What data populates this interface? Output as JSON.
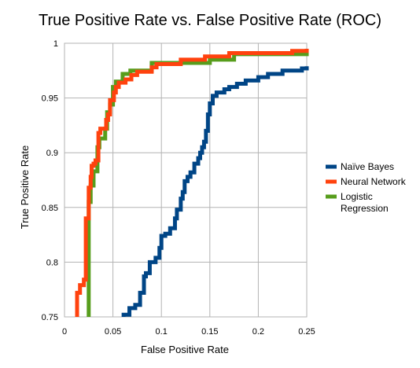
{
  "chart_data": {
    "type": "line",
    "title": "True Positive Rate vs. False Positive Rate (ROC)",
    "xlabel": "False Positive Rate",
    "ylabel": "True Positive Rate",
    "xlim": [
      0,
      0.25
    ],
    "ylim": [
      0.75,
      1
    ],
    "xticks": [
      "0",
      "0.05",
      "0.1",
      "0.15",
      "0.2",
      "0.25"
    ],
    "yticks": [
      "0.75",
      "0.8",
      "0.85",
      "0.9",
      "0.95",
      "1"
    ],
    "grid": "vertical-and-horizontal",
    "legend_position": "right",
    "series": [
      {
        "name": "Naïve Bayes",
        "color": "#004586",
        "points": [
          [
            0.061,
            0.75
          ],
          [
            0.061,
            0.752
          ],
          [
            0.067,
            0.752
          ],
          [
            0.067,
            0.758
          ],
          [
            0.073,
            0.758
          ],
          [
            0.073,
            0.761
          ],
          [
            0.078,
            0.761
          ],
          [
            0.078,
            0.772
          ],
          [
            0.082,
            0.772
          ],
          [
            0.082,
            0.787
          ],
          [
            0.084,
            0.787
          ],
          [
            0.084,
            0.79
          ],
          [
            0.088,
            0.79
          ],
          [
            0.088,
            0.8
          ],
          [
            0.094,
            0.8
          ],
          [
            0.094,
            0.804
          ],
          [
            0.098,
            0.804
          ],
          [
            0.098,
            0.813
          ],
          [
            0.1,
            0.813
          ],
          [
            0.1,
            0.824
          ],
          [
            0.104,
            0.824
          ],
          [
            0.104,
            0.826
          ],
          [
            0.109,
            0.826
          ],
          [
            0.109,
            0.831
          ],
          [
            0.114,
            0.831
          ],
          [
            0.114,
            0.84
          ],
          [
            0.116,
            0.84
          ],
          [
            0.116,
            0.848
          ],
          [
            0.12,
            0.848
          ],
          [
            0.12,
            0.858
          ],
          [
            0.122,
            0.858
          ],
          [
            0.122,
            0.864
          ],
          [
            0.124,
            0.864
          ],
          [
            0.124,
            0.874
          ],
          [
            0.127,
            0.874
          ],
          [
            0.127,
            0.878
          ],
          [
            0.13,
            0.878
          ],
          [
            0.13,
            0.882
          ],
          [
            0.134,
            0.882
          ],
          [
            0.134,
            0.89
          ],
          [
            0.138,
            0.89
          ],
          [
            0.138,
            0.895
          ],
          [
            0.14,
            0.895
          ],
          [
            0.14,
            0.9
          ],
          [
            0.142,
            0.9
          ],
          [
            0.142,
            0.905
          ],
          [
            0.144,
            0.905
          ],
          [
            0.144,
            0.91
          ],
          [
            0.146,
            0.91
          ],
          [
            0.146,
            0.92
          ],
          [
            0.148,
            0.92
          ],
          [
            0.148,
            0.935
          ],
          [
            0.15,
            0.935
          ],
          [
            0.15,
            0.945
          ],
          [
            0.153,
            0.945
          ],
          [
            0.153,
            0.952
          ],
          [
            0.157,
            0.952
          ],
          [
            0.157,
            0.955
          ],
          [
            0.165,
            0.955
          ],
          [
            0.165,
            0.958
          ],
          [
            0.17,
            0.958
          ],
          [
            0.17,
            0.96
          ],
          [
            0.178,
            0.96
          ],
          [
            0.178,
            0.963
          ],
          [
            0.187,
            0.963
          ],
          [
            0.187,
            0.966
          ],
          [
            0.2,
            0.966
          ],
          [
            0.2,
            0.969
          ],
          [
            0.21,
            0.969
          ],
          [
            0.21,
            0.972
          ],
          [
            0.225,
            0.972
          ],
          [
            0.225,
            0.975
          ],
          [
            0.245,
            0.975
          ],
          [
            0.245,
            0.977
          ],
          [
            0.25,
            0.977
          ],
          [
            0.25,
            0.979
          ]
        ]
      },
      {
        "name": "Neural Network",
        "color": "#ff420e",
        "points": [
          [
            0.013,
            0.75
          ],
          [
            0.013,
            0.772
          ],
          [
            0.016,
            0.772
          ],
          [
            0.016,
            0.779
          ],
          [
            0.02,
            0.779
          ],
          [
            0.02,
            0.784
          ],
          [
            0.022,
            0.784
          ],
          [
            0.022,
            0.84
          ],
          [
            0.025,
            0.84
          ],
          [
            0.025,
            0.868
          ],
          [
            0.027,
            0.868
          ],
          [
            0.027,
            0.878
          ],
          [
            0.028,
            0.878
          ],
          [
            0.028,
            0.888
          ],
          [
            0.03,
            0.888
          ],
          [
            0.03,
            0.89
          ],
          [
            0.032,
            0.89
          ],
          [
            0.032,
            0.893
          ],
          [
            0.035,
            0.893
          ],
          [
            0.035,
            0.918
          ],
          [
            0.037,
            0.918
          ],
          [
            0.037,
            0.922
          ],
          [
            0.043,
            0.922
          ],
          [
            0.043,
            0.93
          ],
          [
            0.045,
            0.93
          ],
          [
            0.045,
            0.935
          ],
          [
            0.047,
            0.935
          ],
          [
            0.047,
            0.948
          ],
          [
            0.051,
            0.948
          ],
          [
            0.051,
            0.955
          ],
          [
            0.053,
            0.955
          ],
          [
            0.053,
            0.96
          ],
          [
            0.056,
            0.96
          ],
          [
            0.056,
            0.964
          ],
          [
            0.063,
            0.964
          ],
          [
            0.063,
            0.967
          ],
          [
            0.069,
            0.967
          ],
          [
            0.069,
            0.971
          ],
          [
            0.075,
            0.971
          ],
          [
            0.075,
            0.974
          ],
          [
            0.09,
            0.974
          ],
          [
            0.09,
            0.978
          ],
          [
            0.095,
            0.978
          ],
          [
            0.095,
            0.981
          ],
          [
            0.12,
            0.981
          ],
          [
            0.12,
            0.985
          ],
          [
            0.145,
            0.985
          ],
          [
            0.145,
            0.988
          ],
          [
            0.17,
            0.988
          ],
          [
            0.17,
            0.991
          ],
          [
            0.235,
            0.991
          ],
          [
            0.235,
            0.993
          ],
          [
            0.25,
            0.993
          ],
          [
            0.25,
            0.995
          ]
        ]
      },
      {
        "name": "Logistic Regression",
        "color": "#579d1c",
        "points": [
          [
            0.025,
            0.75
          ],
          [
            0.025,
            0.855
          ],
          [
            0.027,
            0.855
          ],
          [
            0.027,
            0.87
          ],
          [
            0.03,
            0.87
          ],
          [
            0.03,
            0.883
          ],
          [
            0.034,
            0.883
          ],
          [
            0.034,
            0.905
          ],
          [
            0.036,
            0.905
          ],
          [
            0.036,
            0.913
          ],
          [
            0.042,
            0.913
          ],
          [
            0.042,
            0.922
          ],
          [
            0.044,
            0.922
          ],
          [
            0.044,
            0.937
          ],
          [
            0.047,
            0.937
          ],
          [
            0.047,
            0.944
          ],
          [
            0.05,
            0.944
          ],
          [
            0.05,
            0.96
          ],
          [
            0.053,
            0.96
          ],
          [
            0.053,
            0.965
          ],
          [
            0.06,
            0.965
          ],
          [
            0.06,
            0.972
          ],
          [
            0.068,
            0.972
          ],
          [
            0.068,
            0.975
          ],
          [
            0.09,
            0.975
          ],
          [
            0.09,
            0.982
          ],
          [
            0.15,
            0.982
          ],
          [
            0.15,
            0.985
          ],
          [
            0.175,
            0.985
          ],
          [
            0.175,
            0.99
          ],
          [
            0.25,
            0.99
          ],
          [
            0.25,
            0.993
          ]
        ]
      }
    ]
  }
}
